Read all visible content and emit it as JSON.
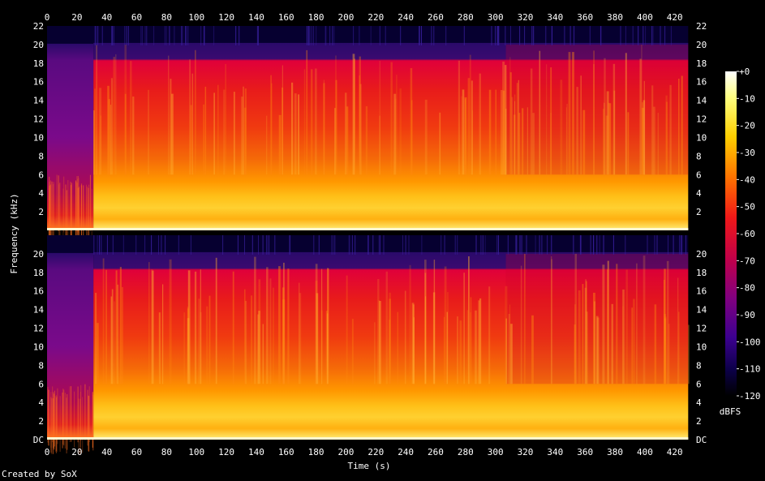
{
  "chart_data": {
    "type": "heatmap",
    "title": "",
    "xlabel": "Time (s)",
    "ylabel": "Frequency (kHz)",
    "xlim": [
      0,
      431
    ],
    "ylim": [
      0,
      22
    ],
    "x_ticks": [
      "0",
      "20",
      "40",
      "60",
      "80",
      "100",
      "120",
      "140",
      "160",
      "180",
      "200",
      "220",
      "240",
      "260",
      "280",
      "300",
      "320",
      "340",
      "360",
      "380",
      "400",
      "420"
    ],
    "y_ticks_upper": [
      "22",
      "20",
      "18",
      "16",
      "14",
      "12",
      "10",
      "8",
      "6",
      "4",
      "2"
    ],
    "y_ticks_lower": [
      "20",
      "18",
      "16",
      "14",
      "12",
      "10",
      "8",
      "6",
      "4",
      "2",
      "DC"
    ],
    "channels": [
      {
        "channel": "upper"
      },
      {
        "channel": "lower"
      }
    ],
    "spectral_content": {
      "quiet_intro_end_s": 31,
      "lowpass_cutoff_khz": 20,
      "bright_low_band_khz": [
        0,
        6
      ],
      "texture_change_s": 307,
      "audio_end_s": 429
    },
    "colorbar": {
      "label": "dBFS",
      "range": [
        -120,
        0
      ],
      "ticks": [
        "+0",
        "-10",
        "-20",
        "-30",
        "-40",
        "-50",
        "-60",
        "-70",
        "-80",
        "-90",
        "-100",
        "-110",
        "-120"
      ]
    }
  },
  "footer": {
    "credit": "Created by SoX"
  }
}
